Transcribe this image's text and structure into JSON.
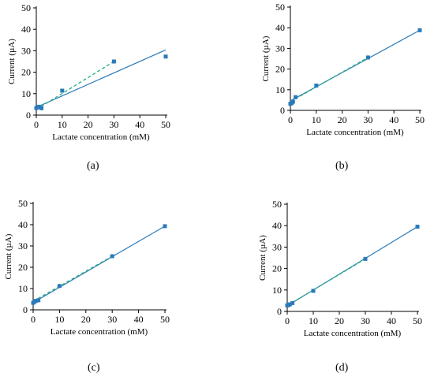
{
  "chart_data": [
    {
      "type": "scatter",
      "panel_label": "(a)",
      "xlabel": "Lactate concentration (mM)",
      "ylabel": "Current (µA)",
      "xlim": [
        0,
        50
      ],
      "ylim": [
        0,
        50
      ],
      "xticks": [
        0,
        10,
        20,
        30,
        40,
        50
      ],
      "yticks": [
        0,
        10,
        20,
        30,
        40,
        50
      ],
      "points": [
        {
          "x": 0,
          "y": 3.3
        },
        {
          "x": 0.5,
          "y": 3.7
        },
        {
          "x": 1,
          "y": 3.9
        },
        {
          "x": 2,
          "y": 3.2
        },
        {
          "x": 10,
          "y": 11.4
        },
        {
          "x": 30,
          "y": 25.0
        },
        {
          "x": 50,
          "y": 27.3
        }
      ],
      "fit_solid": {
        "x": [
          0,
          50
        ],
        "y": [
          3.6,
          30.4
        ]
      },
      "fit_dashed": {
        "x": [
          0,
          30
        ],
        "y": [
          2.6,
          25.0
        ]
      }
    },
    {
      "type": "scatter",
      "panel_label": "(b)",
      "xlabel": "Lactate concentration (mM)",
      "ylabel": "Current (µA)",
      "xlim": [
        0,
        50
      ],
      "ylim": [
        0,
        50
      ],
      "xticks": [
        0,
        10,
        20,
        30,
        40,
        50
      ],
      "yticks": [
        0,
        10,
        20,
        30,
        40,
        50
      ],
      "points": [
        {
          "x": 0,
          "y": 3.2
        },
        {
          "x": 0.5,
          "y": 3.6
        },
        {
          "x": 1,
          "y": 4.2
        },
        {
          "x": 2,
          "y": 6.4
        },
        {
          "x": 10,
          "y": 12.0
        },
        {
          "x": 30,
          "y": 25.6
        },
        {
          "x": 50,
          "y": 38.8
        }
      ],
      "fit_solid": {
        "x": [
          0,
          50
        ],
        "y": [
          4.6,
          38.8
        ]
      },
      "fit_dashed": {
        "x": [
          0,
          30
        ],
        "y": [
          4.2,
          25.6
        ]
      }
    },
    {
      "type": "scatter",
      "panel_label": "(c)",
      "xlabel": "Lactate concentration (mM)",
      "ylabel": "Current (µA)",
      "xlim": [
        0,
        50
      ],
      "ylim": [
        0,
        50
      ],
      "xticks": [
        0,
        10,
        20,
        30,
        40,
        50
      ],
      "yticks": [
        0,
        10,
        20,
        30,
        40,
        50
      ],
      "points": [
        {
          "x": 0,
          "y": 3.3
        },
        {
          "x": 0.5,
          "y": 3.8
        },
        {
          "x": 1,
          "y": 4.2
        },
        {
          "x": 2,
          "y": 4.5
        },
        {
          "x": 10,
          "y": 11.2
        },
        {
          "x": 30,
          "y": 25.2
        },
        {
          "x": 50,
          "y": 39.3
        }
      ],
      "fit_solid": {
        "x": [
          0,
          50
        ],
        "y": [
          3.4,
          39.3
        ]
      },
      "fit_dashed": {
        "x": [
          0,
          30
        ],
        "y": [
          4.0,
          25.2
        ]
      }
    },
    {
      "type": "scatter",
      "panel_label": "(d)",
      "xlabel": "Lactate concentration (mM)",
      "ylabel": "Current (µA)",
      "xlim": [
        0,
        50
      ],
      "ylim": [
        0,
        50
      ],
      "xticks": [
        0,
        10,
        20,
        30,
        40,
        50
      ],
      "yticks": [
        0,
        10,
        20,
        30,
        40,
        50
      ],
      "points": [
        {
          "x": 0,
          "y": 2.8
        },
        {
          "x": 0.5,
          "y": 3.0
        },
        {
          "x": 1,
          "y": 3.3
        },
        {
          "x": 2,
          "y": 3.9
        },
        {
          "x": 10,
          "y": 9.6
        },
        {
          "x": 30,
          "y": 24.5
        },
        {
          "x": 50,
          "y": 39.5
        }
      ],
      "fit_solid": {
        "x": [
          0,
          50
        ],
        "y": [
          2.6,
          39.5
        ]
      },
      "fit_dashed": {
        "x": [
          0,
          30
        ],
        "y": [
          2.7,
          24.5
        ]
      }
    }
  ],
  "colors": {
    "marker": "#2a7ab9",
    "solid_line": "#2a7ab9",
    "dashed_line": "#2bb07f",
    "axis": "#000000"
  }
}
